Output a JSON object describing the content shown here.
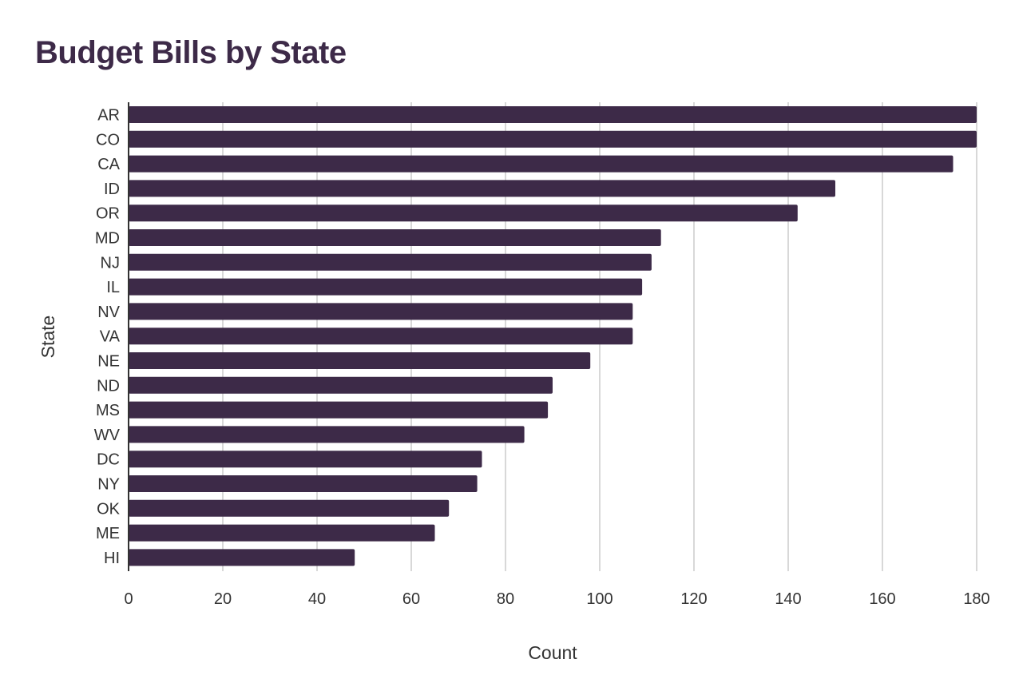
{
  "chart_data": {
    "type": "bar",
    "orientation": "horizontal",
    "title": "Budget Bills by State",
    "xlabel": "Count",
    "ylabel": "State",
    "xlim": [
      0,
      180
    ],
    "xticks": [
      0,
      20,
      40,
      60,
      80,
      100,
      120,
      140,
      160,
      180
    ],
    "grid": true,
    "bar_color": "#3d2a48",
    "categories": [
      "AR",
      "CO",
      "CA",
      "ID",
      "OR",
      "MD",
      "NJ",
      "IL",
      "NV",
      "VA",
      "NE",
      "ND",
      "MS",
      "WV",
      "DC",
      "NY",
      "OK",
      "ME",
      "HI"
    ],
    "values": [
      180,
      180,
      175,
      150,
      142,
      113,
      111,
      109,
      107,
      107,
      98,
      90,
      89,
      84,
      75,
      74,
      68,
      65,
      48
    ]
  }
}
